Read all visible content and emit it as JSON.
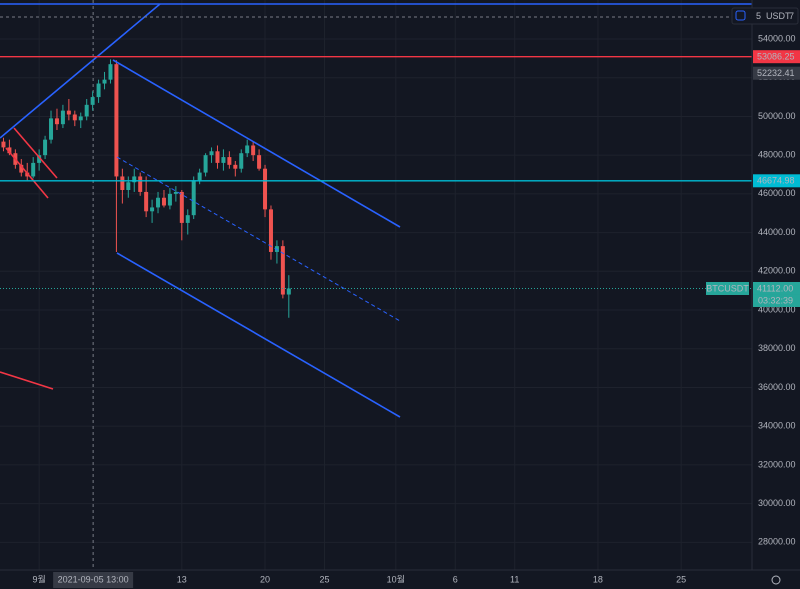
{
  "chart_data": {
    "type": "candlestick",
    "x": [
      "2021-08-29 00:00",
      "2021-08-29 12:00",
      "2021-08-30 00:00",
      "2021-08-30 12:00",
      "2021-08-31 00:00",
      "2021-08-31 12:00",
      "2021-09-01 00:00",
      "2021-09-01 12:00",
      "2021-09-02 00:00",
      "2021-09-02 12:00",
      "2021-09-03 00:00",
      "2021-09-03 12:00",
      "2021-09-04 00:00",
      "2021-09-04 12:00",
      "2021-09-05 00:00",
      "2021-09-05 12:00",
      "2021-09-06 00:00",
      "2021-09-06 12:00",
      "2021-09-07 00:00",
      "2021-09-07 12:00",
      "2021-09-08 00:00",
      "2021-09-08 12:00",
      "2021-09-09 00:00",
      "2021-09-09 12:00",
      "2021-09-10 00:00",
      "2021-09-10 12:00",
      "2021-09-11 00:00",
      "2021-09-11 12:00",
      "2021-09-12 00:00",
      "2021-09-12 12:00",
      "2021-09-13 00:00",
      "2021-09-13 12:00",
      "2021-09-14 00:00",
      "2021-09-14 12:00",
      "2021-09-15 00:00",
      "2021-09-15 12:00",
      "2021-09-16 00:00",
      "2021-09-16 12:00",
      "2021-09-17 00:00",
      "2021-09-17 12:00",
      "2021-09-18 00:00",
      "2021-09-18 12:00",
      "2021-09-19 00:00",
      "2021-09-19 12:00",
      "2021-09-20 00:00",
      "2021-09-20 12:00",
      "2021-09-21 00:00",
      "2021-09-21 12:00",
      "2021-09-22 00:00"
    ],
    "open": [
      48700,
      48400,
      48100,
      47500,
      47100,
      46900,
      47600,
      48000,
      48800,
      49900,
      49600,
      50300,
      50100,
      49800,
      50000,
      50600,
      51000,
      51700,
      51900,
      52700,
      46900,
      46200,
      46600,
      46900,
      46100,
      45100,
      45300,
      45800,
      45400,
      46000,
      46100,
      44500,
      44900,
      46700,
      47100,
      48000,
      48200,
      47600,
      47900,
      47500,
      47300,
      48100,
      48500,
      48000,
      47300,
      45200,
      43000,
      43300,
      40800
    ],
    "high": [
      48900,
      48800,
      48300,
      47800,
      47600,
      47900,
      48300,
      49000,
      50300,
      50400,
      50600,
      50900,
      50300,
      50200,
      50900,
      51300,
      51900,
      52300,
      52950,
      52900,
      47300,
      46900,
      47300,
      47100,
      46900,
      45700,
      46100,
      46200,
      46300,
      46400,
      46200,
      45200,
      46900,
      47300,
      48100,
      48400,
      48500,
      48300,
      48200,
      47700,
      48300,
      48800,
      48700,
      48300,
      47500,
      45400,
      43600,
      43600,
      41800
    ],
    "low": [
      48200,
      48000,
      47300,
      46900,
      46700,
      46800,
      47200,
      47800,
      48600,
      49300,
      49400,
      49800,
      49500,
      49400,
      49800,
      50300,
      50700,
      51400,
      51700,
      43000,
      45500,
      45800,
      46100,
      45900,
      44800,
      44500,
      45000,
      45300,
      45200,
      45600,
      43600,
      43900,
      44700,
      46500,
      46900,
      47600,
      47300,
      47200,
      47300,
      46900,
      47100,
      47900,
      47700,
      47200,
      44800,
      42600,
      42400,
      40600,
      39600
    ],
    "close": [
      48400,
      48100,
      47500,
      47100,
      46900,
      47600,
      48000,
      48800,
      49900,
      49600,
      50300,
      50100,
      49800,
      50000,
      50600,
      51000,
      51700,
      51900,
      52700,
      46900,
      46200,
      46600,
      46900,
      46100,
      45100,
      45300,
      45800,
      45400,
      46000,
      46100,
      44500,
      44900,
      46700,
      47100,
      48000,
      48200,
      47600,
      47900,
      47500,
      47300,
      48100,
      48500,
      48000,
      47300,
      45200,
      43000,
      43300,
      40800,
      41112
    ],
    "up_color": "#26a69a",
    "down_color": "#ef5350",
    "xlim": [
      "2021-08-28 17:00",
      "2021-10-30 23:00"
    ],
    "xticks": [
      {
        "value": "2021-09-01 00:00",
        "label": "9월"
      },
      {
        "value": "2021-09-13 00:00",
        "label": "13"
      },
      {
        "value": "2021-09-20 00:00",
        "label": "20"
      },
      {
        "value": "2021-09-25 00:00",
        "label": "25"
      },
      {
        "value": "2021-10-01 00:00",
        "label": "10월"
      },
      {
        "value": "2021-10-06 00:00",
        "label": "6"
      },
      {
        "value": "2021-10-11 00:00",
        "label": "11"
      },
      {
        "value": "2021-10-18 00:00",
        "label": "18"
      },
      {
        "value": "2021-10-25 00:00",
        "label": "25"
      }
    ],
    "crosshair_x": {
      "value": "2021-09-05 13:00",
      "label": "2021-09-05 13:00"
    },
    "ylim": [
      26570,
      56015
    ],
    "yticks": [
      {
        "value": 28000,
        "label": "28000.00"
      },
      {
        "value": 30000,
        "label": "30000.00"
      },
      {
        "value": 32000,
        "label": "32000.00"
      },
      {
        "value": 34000,
        "label": "34000.00"
      },
      {
        "value": 36000,
        "label": "36000.00"
      },
      {
        "value": 38000,
        "label": "38000.00"
      },
      {
        "value": 40000,
        "label": "40000.00"
      },
      {
        "value": 42000,
        "label": "42000.00"
      },
      {
        "value": 44000,
        "label": "44000.00"
      },
      {
        "value": 46000,
        "label": "46000.00"
      },
      {
        "value": 48000,
        "label": "48000.00"
      },
      {
        "value": 50000,
        "label": "50000.00"
      },
      {
        "value": 52000,
        "label": "52000.00"
      },
      {
        "value": 54000,
        "label": "54000.00"
      }
    ],
    "grid": true,
    "price_lines": [
      {
        "value": 53086.25,
        "color": "#f23645",
        "line": true
      },
      {
        "value": 52232.41,
        "color": "#363a45",
        "line": false
      },
      {
        "value": 46674.98,
        "color": "#00bcd4",
        "line": true
      },
      {
        "value": 41112,
        "label": "41112.00",
        "color": "#26a69a",
        "line": true,
        "symbol": "BTCUSDT",
        "countdown": "03:32:39"
      }
    ],
    "top_bar": {
      "left": "5",
      "unit": "USDT",
      "right": "7"
    }
  }
}
